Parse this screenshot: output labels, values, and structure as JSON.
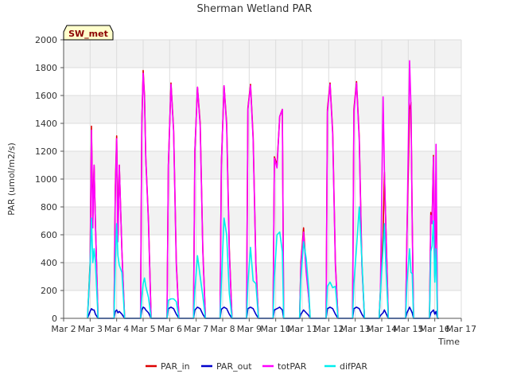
{
  "chart_data": {
    "type": "line",
    "title": "Sherman Wetland PAR",
    "xlabel": "Time",
    "ylabel": "PAR (umol/m2/s)",
    "badge": "SW_met",
    "xlim": [
      2,
      17
    ],
    "ylim": [
      0,
      2000
    ],
    "yticks": [
      0,
      200,
      400,
      600,
      800,
      1000,
      1200,
      1400,
      1600,
      1800,
      2000
    ],
    "xticks": [
      {
        "value": 2,
        "label": "Mar 2"
      },
      {
        "value": 3,
        "label": "Mar 3"
      },
      {
        "value": 4,
        "label": "Mar 4"
      },
      {
        "value": 5,
        "label": "Mar 5"
      },
      {
        "value": 6,
        "label": "Mar 6"
      },
      {
        "value": 7,
        "label": "Mar 7"
      },
      {
        "value": 8,
        "label": "Mar 8"
      },
      {
        "value": 9,
        "label": "Mar 9"
      },
      {
        "value": 10,
        "label": "Mar 10"
      },
      {
        "value": 11,
        "label": "Mar 11"
      },
      {
        "value": 12,
        "label": "Mar 12"
      },
      {
        "value": 13,
        "label": "Mar 13"
      },
      {
        "value": 14,
        "label": "Mar 14"
      },
      {
        "value": 15,
        "label": "Mar 15"
      },
      {
        "value": 16,
        "label": "Mar 16"
      },
      {
        "value": 17,
        "label": "Mar 17"
      }
    ],
    "grid": true,
    "legend_position": "bottom",
    "series": [
      {
        "name": "PAR_in",
        "color": "#dd0000"
      },
      {
        "name": "PAR_out",
        "color": "#0000cc"
      },
      {
        "name": "totPAR",
        "color": "#ff00ff"
      },
      {
        "name": "difPAR",
        "color": "#00eeee"
      }
    ],
    "x": [
      2.9,
      3.0,
      3.05,
      3.1,
      3.15,
      3.2,
      3.3,
      3.4,
      3.9,
      3.95,
      4.0,
      4.05,
      4.1,
      4.2,
      4.3,
      4.45,
      4.9,
      4.95,
      5.0,
      5.05,
      5.1,
      5.2,
      5.3,
      5.45,
      5.9,
      5.95,
      6.05,
      6.15,
      6.25,
      6.35,
      6.45,
      6.9,
      6.95,
      7.05,
      7.15,
      7.25,
      7.35,
      7.45,
      7.9,
      7.95,
      8.05,
      8.15,
      8.25,
      8.35,
      8.45,
      8.9,
      8.95,
      9.05,
      9.15,
      9.25,
      9.35,
      9.45,
      9.9,
      9.95,
      10.05,
      10.15,
      10.25,
      10.3,
      10.45,
      10.9,
      10.95,
      11.05,
      11.15,
      11.25,
      11.3,
      11.45,
      11.9,
      11.95,
      12.05,
      12.15,
      12.25,
      12.35,
      12.45,
      12.9,
      12.95,
      13.05,
      13.15,
      13.25,
      13.35,
      13.45,
      13.9,
      13.95,
      14.05,
      14.1,
      14.15,
      14.25,
      14.3,
      14.45,
      14.9,
      14.95,
      15.05,
      15.1,
      15.15,
      15.2,
      15.25,
      15.45,
      15.8,
      15.85,
      15.9,
      15.95,
      16.0,
      16.05,
      16.1,
      16.15,
      16.3
    ],
    "values": {
      "PAR_in": [
        0,
        400,
        1380,
        700,
        1100,
        680,
        0,
        0,
        0,
        950,
        1310,
        600,
        1100,
        480,
        0,
        0,
        0,
        1400,
        1780,
        1600,
        1150,
        700,
        0,
        0,
        0,
        1100,
        1690,
        1350,
        400,
        0,
        0,
        0,
        1200,
        1660,
        1400,
        500,
        0,
        0,
        0,
        1100,
        1670,
        1400,
        500,
        0,
        0,
        0,
        1510,
        1680,
        1300,
        400,
        0,
        0,
        0,
        1160,
        1100,
        1450,
        1500,
        0,
        0,
        0,
        400,
        650,
        350,
        150,
        0,
        0,
        0,
        1500,
        1690,
        1340,
        400,
        0,
        0,
        0,
        1500,
        1700,
        1300,
        400,
        0,
        0,
        0,
        200,
        600,
        1050,
        700,
        0,
        0,
        0,
        0,
        610,
        1500,
        1550,
        700,
        0,
        0,
        0,
        0,
        760,
        700,
        1170,
        300,
        1000,
        0,
        0
      ],
      "PAR_out": [
        0,
        50,
        70,
        60,
        60,
        30,
        0,
        0,
        0,
        50,
        60,
        40,
        50,
        30,
        0,
        0,
        0,
        60,
        80,
        75,
        60,
        40,
        0,
        0,
        0,
        70,
        80,
        70,
        30,
        0,
        0,
        0,
        60,
        80,
        70,
        30,
        0,
        0,
        0,
        65,
        80,
        70,
        30,
        0,
        0,
        0,
        70,
        80,
        70,
        30,
        0,
        0,
        0,
        60,
        70,
        80,
        60,
        0,
        0,
        0,
        30,
        60,
        40,
        20,
        0,
        0,
        0,
        70,
        80,
        70,
        30,
        0,
        0,
        0,
        70,
        80,
        70,
        30,
        0,
        0,
        0,
        20,
        40,
        60,
        40,
        0,
        0,
        0,
        0,
        40,
        80,
        60,
        40,
        0,
        0,
        0,
        0,
        40,
        50,
        60,
        30,
        50,
        0,
        0
      ],
      "totPAR": [
        0,
        350,
        1350,
        650,
        1100,
        680,
        0,
        0,
        0,
        900,
        1290,
        550,
        1100,
        480,
        0,
        0,
        0,
        1400,
        1760,
        1580,
        1150,
        680,
        0,
        0,
        0,
        1100,
        1680,
        1340,
        380,
        0,
        0,
        0,
        1200,
        1660,
        1380,
        480,
        0,
        0,
        0,
        1100,
        1670,
        1380,
        480,
        0,
        0,
        0,
        1500,
        1670,
        1280,
        380,
        0,
        0,
        0,
        1150,
        1080,
        1450,
        1500,
        0,
        0,
        0,
        380,
        620,
        330,
        140,
        0,
        0,
        0,
        1480,
        1680,
        1320,
        380,
        0,
        0,
        0,
        1480,
        1690,
        1280,
        380,
        0,
        0,
        0,
        190,
        1590,
        1070,
        690,
        0,
        0,
        0,
        0,
        600,
        1850,
        1520,
        680,
        0,
        0,
        0,
        0,
        740,
        680,
        1160,
        290,
        1250,
        0,
        0
      ],
      "difPAR": [
        0,
        380,
        720,
        400,
        500,
        400,
        0,
        0,
        0,
        400,
        680,
        450,
        380,
        330,
        0,
        0,
        0,
        150,
        250,
        290,
        230,
        150,
        0,
        0,
        0,
        130,
        140,
        140,
        120,
        0,
        0,
        0,
        200,
        450,
        300,
        160,
        0,
        0,
        0,
        250,
        720,
        600,
        180,
        0,
        0,
        0,
        250,
        510,
        270,
        250,
        0,
        0,
        0,
        300,
        600,
        620,
        480,
        0,
        0,
        0,
        280,
        550,
        430,
        200,
        0,
        0,
        0,
        230,
        260,
        220,
        230,
        0,
        0,
        0,
        250,
        510,
        800,
        420,
        0,
        0,
        0,
        180,
        500,
        680,
        400,
        0,
        0,
        0,
        0,
        250,
        500,
        330,
        320,
        0,
        0,
        0,
        0,
        480,
        520,
        700,
        260,
        500,
        0,
        0
      ]
    }
  }
}
